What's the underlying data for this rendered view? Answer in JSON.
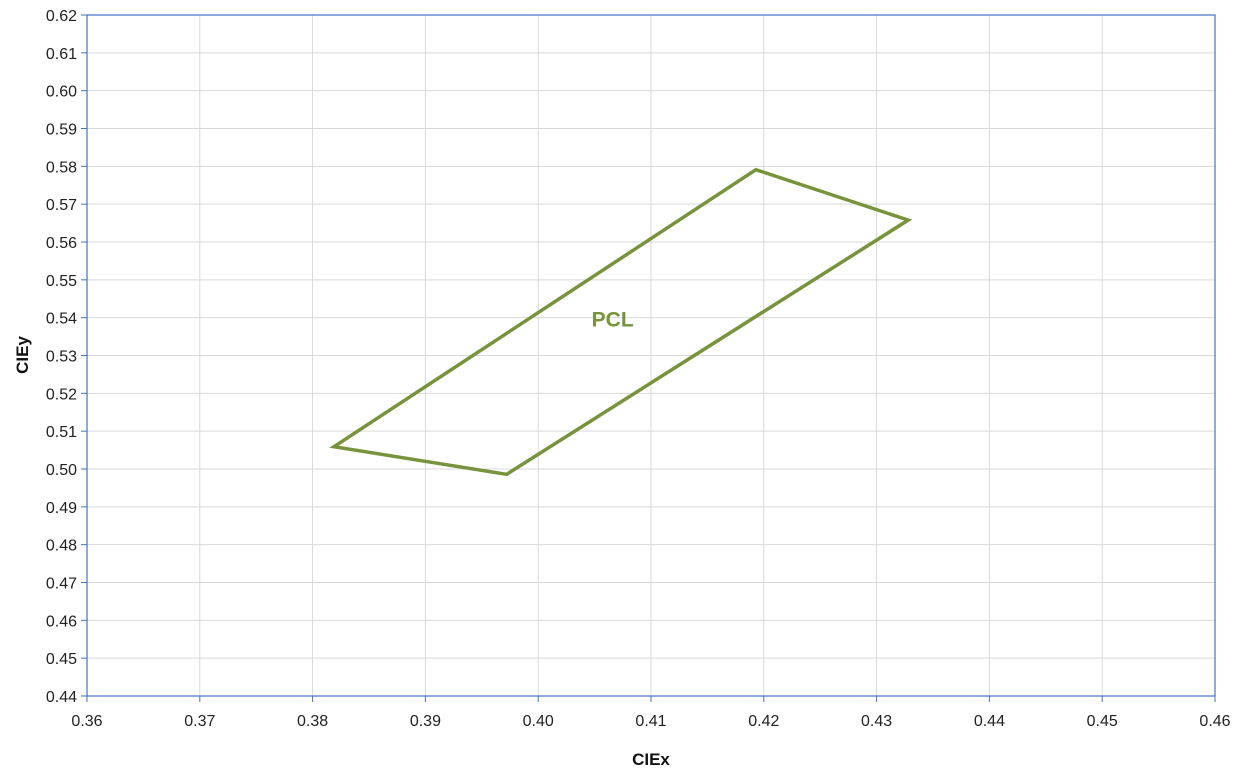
{
  "chart_data": {
    "type": "line",
    "title": "",
    "xlabel": "CIEx",
    "ylabel": "CIEy",
    "xlim": [
      0.36,
      0.46
    ],
    "ylim": [
      0.44,
      0.62
    ],
    "x_ticks": [
      "0.36",
      "0.37",
      "0.38",
      "0.39",
      "0.40",
      "0.41",
      "0.42",
      "0.43",
      "0.44",
      "0.45",
      "0.46"
    ],
    "y_ticks": [
      "0.44",
      "0.45",
      "0.46",
      "0.47",
      "0.48",
      "0.49",
      "0.50",
      "0.51",
      "0.52",
      "0.53",
      "0.54",
      "0.55",
      "0.56",
      "0.57",
      "0.58",
      "0.59",
      "0.60",
      "0.61",
      "0.62"
    ],
    "grid": true,
    "legend": "none",
    "series": [
      {
        "name": "PCL",
        "color": "#77933C",
        "closed": true,
        "points": [
          {
            "x": 0.3819,
            "y": 0.5059
          },
          {
            "x": 0.4193,
            "y": 0.5791
          },
          {
            "x": 0.4328,
            "y": 0.5658
          },
          {
            "x": 0.3972,
            "y": 0.4986
          }
        ]
      }
    ],
    "annotations": [
      {
        "text": "PCL",
        "x": 0.4066,
        "y": 0.5395,
        "color": "#77933C"
      }
    ]
  }
}
